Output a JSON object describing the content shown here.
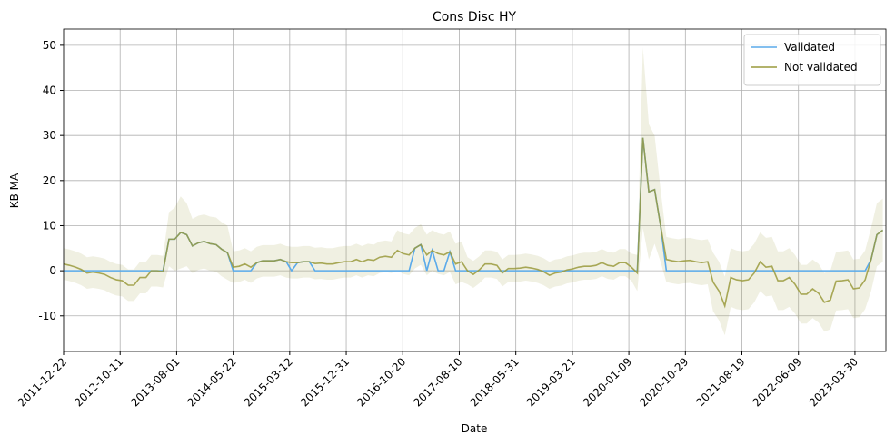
{
  "chart_data": {
    "type": "line",
    "title": "Cons Disc HY",
    "x_label": "Date",
    "y_label": "KB MA",
    "x": [
      "2011-12-22",
      "2012-01-22",
      "2012-02-22",
      "2012-03-22",
      "2012-04-22",
      "2012-05-22",
      "2012-06-22",
      "2012-07-22",
      "2012-08-22",
      "2012-09-22",
      "2012-10-22",
      "2012-11-22",
      "2012-12-22",
      "2013-01-22",
      "2013-02-22",
      "2013-03-22",
      "2013-04-22",
      "2013-05-22",
      "2013-06-22",
      "2013-07-22",
      "2013-08-22",
      "2013-09-22",
      "2013-10-22",
      "2013-11-22",
      "2013-12-22",
      "2014-01-22",
      "2014-02-22",
      "2014-03-22",
      "2014-04-22",
      "2014-05-22",
      "2014-06-22",
      "2014-07-22",
      "2014-08-22",
      "2014-09-22",
      "2014-10-22",
      "2014-11-22",
      "2014-12-22",
      "2015-01-22",
      "2015-02-22",
      "2015-03-22",
      "2015-04-22",
      "2015-05-22",
      "2015-06-22",
      "2015-07-22",
      "2015-08-22",
      "2015-09-22",
      "2015-10-22",
      "2015-11-22",
      "2015-12-22",
      "2016-01-22",
      "2016-02-22",
      "2016-03-22",
      "2016-04-22",
      "2016-05-22",
      "2016-06-22",
      "2016-07-22",
      "2016-08-22",
      "2016-09-22",
      "2016-10-22",
      "2016-11-22",
      "2016-12-22",
      "2017-01-22",
      "2017-02-22",
      "2017-03-22",
      "2017-04-22",
      "2017-05-22",
      "2017-06-22",
      "2017-07-22",
      "2017-08-22",
      "2017-09-22",
      "2017-10-22",
      "2017-11-22",
      "2017-12-22",
      "2018-01-22",
      "2018-02-22",
      "2018-03-22",
      "2018-04-22",
      "2018-05-22",
      "2018-06-22",
      "2018-07-22",
      "2018-08-22",
      "2018-09-22",
      "2018-10-22",
      "2018-11-22",
      "2018-12-22",
      "2019-01-22",
      "2019-02-22",
      "2019-03-22",
      "2019-04-22",
      "2019-05-22",
      "2019-06-22",
      "2019-07-22",
      "2019-08-22",
      "2019-09-22",
      "2019-10-22",
      "2019-11-22",
      "2019-12-22",
      "2020-01-22",
      "2020-02-22",
      "2020-03-22",
      "2020-04-22",
      "2020-05-22",
      "2020-06-22",
      "2020-07-22",
      "2020-08-22",
      "2020-09-22",
      "2020-10-22",
      "2020-11-22",
      "2020-12-22",
      "2021-01-22",
      "2021-02-22",
      "2021-03-22",
      "2021-04-22",
      "2021-05-22",
      "2021-06-22",
      "2021-07-22",
      "2021-08-22",
      "2021-09-22",
      "2021-10-22",
      "2021-11-22",
      "2021-12-22",
      "2022-01-22",
      "2022-02-22",
      "2022-03-22",
      "2022-04-22",
      "2022-05-22",
      "2022-06-22",
      "2022-07-22",
      "2022-08-22",
      "2022-09-22",
      "2022-10-22",
      "2022-11-22",
      "2022-12-22",
      "2023-01-22",
      "2023-02-22",
      "2023-03-22",
      "2023-04-22",
      "2023-05-22",
      "2023-06-22",
      "2023-07-22",
      "2023-08-22"
    ],
    "series": [
      {
        "name": "Validated",
        "color": "#5aaaea",
        "values": [
          0,
          0,
          0,
          0,
          0,
          0,
          0,
          0,
          0,
          0,
          0,
          0,
          0,
          0,
          0,
          0,
          0,
          0,
          7,
          7,
          8.5,
          8,
          5.5,
          6.2,
          6.5,
          6,
          5.8,
          4.8,
          4,
          0,
          0,
          0,
          0,
          1.8,
          2.2,
          2.2,
          2.2,
          2.5,
          2,
          0,
          1.8,
          2,
          2,
          0,
          0,
          0,
          0,
          0,
          0,
          0,
          0,
          0,
          0,
          0,
          0,
          0,
          0,
          0,
          0,
          0,
          5,
          5.8,
          0,
          4.5,
          0,
          0,
          4.2,
          0,
          0,
          0,
          0,
          0,
          0,
          0,
          0,
          0,
          0,
          0,
          0,
          0,
          0,
          0,
          0,
          0,
          0,
          0,
          0,
          0,
          0,
          0,
          0,
          0,
          0,
          0,
          0,
          0,
          0,
          0,
          0,
          29.5,
          17.5,
          18,
          10,
          0,
          0,
          0,
          0,
          0,
          0,
          0,
          0,
          0,
          0,
          0,
          0,
          0,
          0,
          0,
          0,
          0,
          0,
          0,
          0,
          0,
          0,
          0,
          0,
          0,
          0,
          0,
          0,
          0,
          0,
          0,
          0,
          0,
          0,
          0,
          2.5,
          8,
          9
        ]
      },
      {
        "name": "Not validated",
        "color": "#9a9a3c",
        "band_color": "#9a9a3c",
        "values": [
          1.5,
          1.2,
          0.8,
          0.3,
          -0.5,
          -0.3,
          -0.5,
          -0.8,
          -1.5,
          -2,
          -2.2,
          -3.2,
          -3.2,
          -1.5,
          -1.5,
          0,
          0,
          -0.2,
          7,
          7,
          8.5,
          8,
          5.5,
          6.2,
          6.5,
          6,
          5.8,
          4.8,
          4,
          0.8,
          1,
          1.5,
          0.8,
          1.8,
          2.2,
          2.2,
          2.2,
          2.5,
          2,
          1.8,
          1.8,
          2,
          2,
          1.6,
          1.7,
          1.5,
          1.5,
          1.8,
          2,
          2,
          2.5,
          2,
          2.5,
          2.3,
          3,
          3.2,
          3,
          4.5,
          3.8,
          3.5,
          5,
          5.8,
          3.5,
          4.5,
          3.8,
          3.5,
          4.2,
          1.5,
          2,
          0,
          -0.8,
          0.2,
          1.5,
          1.5,
          1.2,
          -0.5,
          0.5,
          0.5,
          0.6,
          0.8,
          0.6,
          0.3,
          -0.2,
          -1,
          -0.5,
          -0.3,
          0.2,
          0.4,
          0.8,
          1,
          1,
          1.2,
          1.8,
          1.2,
          1,
          1.8,
          1.8,
          0.8,
          -0.5,
          29.5,
          17.5,
          18,
          10,
          2.5,
          2.2,
          2,
          2.2,
          2.3,
          2,
          1.8,
          2,
          -2.5,
          -4.5,
          -7.8,
          -1.5,
          -2,
          -2.2,
          -2,
          -0.5,
          2,
          0.8,
          1,
          -2.2,
          -2.2,
          -1.5,
          -3,
          -5.2,
          -5.2,
          -4,
          -5,
          -7,
          -6.5,
          -2.3,
          -2.2,
          -2,
          -4,
          -3.8,
          -2,
          2.5,
          8,
          9
        ],
        "errors": [
          3.5,
          3.5,
          3.5,
          3.5,
          3.5,
          3.5,
          3.5,
          3.5,
          3.5,
          3.5,
          3.5,
          3.5,
          3.5,
          3.5,
          3.5,
          3.5,
          3.5,
          3.5,
          6,
          7,
          8,
          7,
          6,
          6,
          6,
          6,
          6,
          6,
          6,
          3.5,
          3.5,
          3.5,
          3.5,
          3.5,
          3.5,
          3.5,
          3.5,
          3.5,
          3.5,
          3.5,
          3.5,
          3.5,
          3.5,
          3.5,
          3.5,
          3.5,
          3.5,
          3.5,
          3.5,
          3.5,
          3.5,
          3.5,
          3.5,
          3.5,
          3.5,
          3.5,
          3.5,
          4.5,
          4.5,
          4.5,
          4.5,
          4.5,
          4.5,
          4.5,
          4.5,
          4.5,
          4.5,
          4.5,
          4.5,
          3,
          3,
          3,
          3,
          3,
          3,
          3,
          3,
          3,
          3,
          3,
          3,
          3,
          3,
          3,
          3,
          3,
          3,
          3,
          3,
          3,
          3,
          3,
          3,
          3,
          3,
          3,
          3,
          3,
          4,
          20,
          15,
          12,
          8,
          5,
          5,
          5,
          5,
          5,
          5,
          5,
          5,
          6.5,
          6.5,
          6.5,
          6.5,
          6.5,
          6.5,
          6.5,
          6.5,
          6.5,
          6.5,
          6.5,
          6.5,
          6.5,
          6.5,
          6.5,
          6.5,
          6.5,
          6.5,
          6.5,
          6.5,
          6.5,
          6.5,
          6.5,
          6.5,
          6.5,
          6.5,
          6.5,
          7,
          7,
          7
        ]
      }
    ],
    "xlim": [
      "2011-12-22",
      "2023-09-07"
    ],
    "xticks": [
      "2011-12-22",
      "2012-10-11",
      "2013-08-01",
      "2014-05-22",
      "2015-03-12",
      "2015-12-31",
      "2016-10-20",
      "2017-08-10",
      "2018-05-31",
      "2019-03-21",
      "2020-01-09",
      "2020-10-29",
      "2021-08-19",
      "2022-06-09",
      "2023-03-30"
    ],
    "ylim": [
      -17.9,
      53.6
    ],
    "yticks": [
      -10,
      0,
      10,
      20,
      30,
      40,
      50
    ],
    "grid": true,
    "legend": "upper right"
  }
}
